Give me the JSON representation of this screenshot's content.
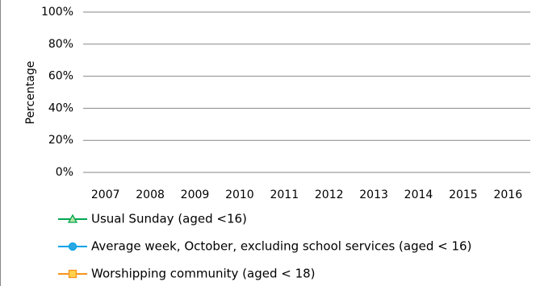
{
  "chart_data": {
    "type": "line",
    "y_label": "Percentage",
    "categories": [
      "2007",
      "2008",
      "2009",
      "2010",
      "2011",
      "2012",
      "2013",
      "2014",
      "2015",
      "2016"
    ],
    "series": [
      {
        "name": "Usual Sunday (aged <16)",
        "color": "#00a651",
        "marker": "triangle",
        "marker_fill": "#b5e3a5",
        "values": [
          null,
          null,
          null,
          null,
          null,
          null,
          null,
          null,
          null,
          null
        ]
      },
      {
        "name": "Average week, October, excluding school services (aged < 16)",
        "color": "#00a2e8",
        "marker": "circle",
        "marker_fill": "#2ea7e0",
        "values": [
          null,
          null,
          null,
          null,
          null,
          null,
          null,
          null,
          null,
          null
        ]
      },
      {
        "name": "Worshipping community (aged < 18)",
        "color": "#f7941d",
        "marker": "square",
        "marker_fill": "#ffd24d",
        "values": [
          null,
          null,
          null,
          null,
          null,
          null,
          null,
          null,
          null,
          null
        ]
      }
    ],
    "ylim": [
      0,
      100
    ],
    "yticks": [
      {
        "value": 0,
        "label": "0%"
      },
      {
        "value": 20,
        "label": "20%"
      },
      {
        "value": 40,
        "label": "40%"
      },
      {
        "value": 60,
        "label": "60%"
      },
      {
        "value": 80,
        "label": "80%"
      },
      {
        "value": 100,
        "label": "100%"
      }
    ],
    "grid": true
  }
}
